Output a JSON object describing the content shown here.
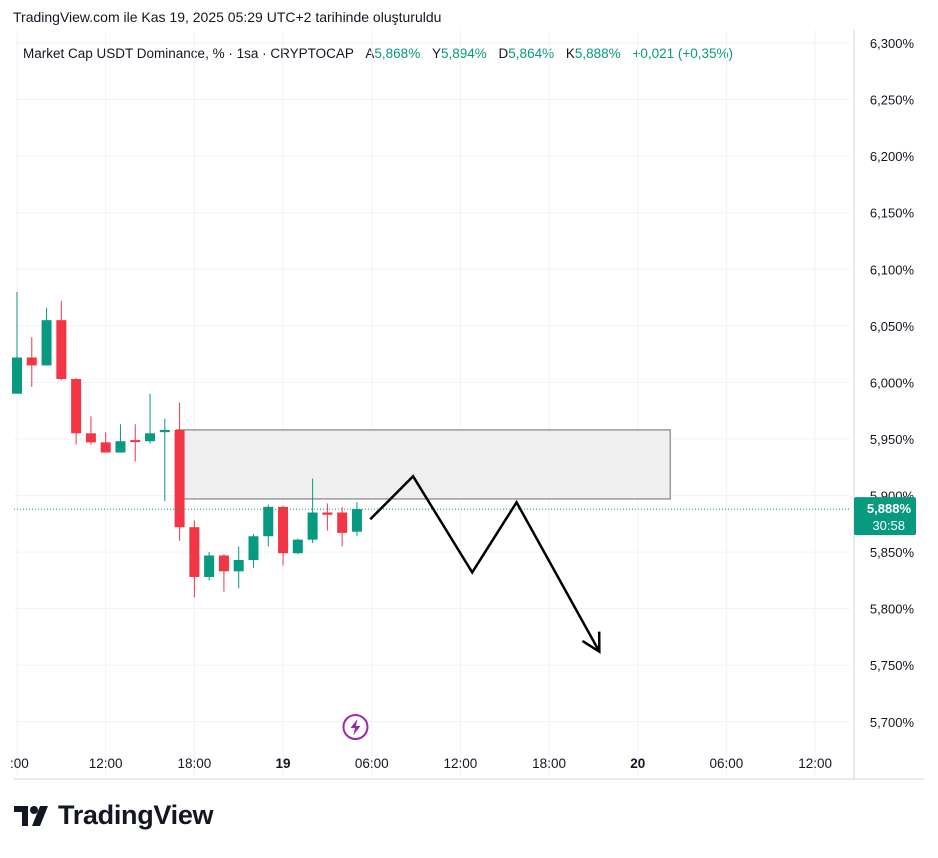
{
  "header": {
    "note": "TradingView.com ile Kas 19, 2025 05:29 UTC+2 tarihinde oluşturuldu"
  },
  "legend": {
    "symbol": "Market Cap USDT Dominance, % · 1sa · CRYPTOCAP",
    "open_label": "A",
    "open": "5,868%",
    "high_label": "Y",
    "high": "5,894%",
    "low_label": "D",
    "low": "5,864%",
    "close_label": "K",
    "close": "5,888%",
    "change": "+0,021 (+0,35%)"
  },
  "price_badge": {
    "price": "5,888%",
    "countdown": "30:58",
    "color": "#089981"
  },
  "logo": {
    "text": "TradingView"
  },
  "colors": {
    "up": "#089981",
    "down": "#f23645",
    "grid": "#f0f3fa",
    "zone_fill": "#f0f0f0",
    "zone_border": "#9b9b9b",
    "lightning": "#9c27b0"
  },
  "chart_data": {
    "type": "candlestick",
    "title": "Market Cap USDT Dominance, % · 1sa · CRYPTOCAP",
    "y_unit": "%",
    "ylim": [
      5.68,
      6.31
    ],
    "yticks": [
      {
        "value": 6.3,
        "label": "6,300%"
      },
      {
        "value": 6.25,
        "label": "6,250%"
      },
      {
        "value": 6.2,
        "label": "6,200%"
      },
      {
        "value": 6.15,
        "label": "6,150%"
      },
      {
        "value": 6.1,
        "label": "6,100%"
      },
      {
        "value": 6.05,
        "label": "6,050%"
      },
      {
        "value": 6.0,
        "label": "6,000%"
      },
      {
        "value": 5.95,
        "label": "5,950%"
      },
      {
        "value": 5.9,
        "label": "5,900%"
      },
      {
        "value": 5.85,
        "label": "5,850%"
      },
      {
        "value": 5.8,
        "label": "5,800%"
      },
      {
        "value": 5.75,
        "label": "5,750%"
      },
      {
        "value": 5.7,
        "label": "5,700%"
      }
    ],
    "xticks": [
      {
        "hour": 6,
        "label": ":00",
        "bold": false
      },
      {
        "hour": 12,
        "label": "12:00",
        "bold": false
      },
      {
        "hour": 18,
        "label": "18:00",
        "bold": false
      },
      {
        "hour": 24,
        "label": "19",
        "bold": true
      },
      {
        "hour": 30,
        "label": "06:00",
        "bold": false
      },
      {
        "hour": 36,
        "label": "12:00",
        "bold": false
      },
      {
        "hour": 42,
        "label": "18:00",
        "bold": false
      },
      {
        "hour": 48,
        "label": "20",
        "bold": true
      },
      {
        "hour": 54,
        "label": "06:00",
        "bold": false
      },
      {
        "hour": 60,
        "label": "12:00",
        "bold": false
      }
    ],
    "candles": [
      {
        "t": 6,
        "o": 5.99,
        "h": 6.08,
        "l": 5.99,
        "c": 6.022
      },
      {
        "t": 7,
        "o": 6.022,
        "h": 6.04,
        "l": 5.996,
        "c": 6.015
      },
      {
        "t": 8,
        "o": 6.015,
        "h": 6.066,
        "l": 6.015,
        "c": 6.055
      },
      {
        "t": 9,
        "o": 6.055,
        "h": 6.072,
        "l": 6.002,
        "c": 6.003
      },
      {
        "t": 10,
        "o": 6.003,
        "h": 6.004,
        "l": 5.945,
        "c": 5.955
      },
      {
        "t": 11,
        "o": 5.955,
        "h": 5.97,
        "l": 5.945,
        "c": 5.947
      },
      {
        "t": 12,
        "o": 5.947,
        "h": 5.956,
        "l": 5.938,
        "c": 5.938
      },
      {
        "t": 13,
        "o": 5.938,
        "h": 5.963,
        "l": 5.938,
        "c": 5.948
      },
      {
        "t": 14,
        "o": 5.949,
        "h": 5.963,
        "l": 5.93,
        "c": 5.948
      },
      {
        "t": 15,
        "o": 5.948,
        "h": 5.99,
        "l": 5.946,
        "c": 5.955
      },
      {
        "t": 16,
        "o": 5.956,
        "h": 5.968,
        "l": 5.895,
        "c": 5.958
      },
      {
        "t": 17,
        "o": 5.958,
        "h": 5.982,
        "l": 5.86,
        "c": 5.872
      },
      {
        "t": 18,
        "o": 5.872,
        "h": 5.878,
        "l": 5.81,
        "c": 5.828
      },
      {
        "t": 19,
        "o": 5.828,
        "h": 5.85,
        "l": 5.825,
        "c": 5.847
      },
      {
        "t": 20,
        "o": 5.847,
        "h": 5.848,
        "l": 5.815,
        "c": 5.833
      },
      {
        "t": 21,
        "o": 5.833,
        "h": 5.855,
        "l": 5.818,
        "c": 5.843
      },
      {
        "t": 22,
        "o": 5.843,
        "h": 5.866,
        "l": 5.836,
        "c": 5.864
      },
      {
        "t": 23,
        "o": 5.864,
        "h": 5.892,
        "l": 5.855,
        "c": 5.89
      },
      {
        "t": 24,
        "o": 5.89,
        "h": 5.891,
        "l": 5.838,
        "c": 5.849
      },
      {
        "t": 25,
        "o": 5.849,
        "h": 5.862,
        "l": 5.848,
        "c": 5.861
      },
      {
        "t": 26,
        "o": 5.861,
        "h": 5.915,
        "l": 5.858,
        "c": 5.885
      },
      {
        "t": 27,
        "o": 5.885,
        "h": 5.893,
        "l": 5.869,
        "c": 5.883
      },
      {
        "t": 28,
        "o": 5.885,
        "h": 5.89,
        "l": 5.855,
        "c": 5.867
      },
      {
        "t": 29,
        "o": 5.868,
        "h": 5.894,
        "l": 5.864,
        "c": 5.888
      }
    ],
    "last_price": 5.888,
    "annotations": {
      "zone": {
        "t_start": 16.8,
        "t_end": 50.2,
        "top": 5.958,
        "bottom": 5.897
      },
      "projection_path": [
        {
          "t": 29.9,
          "v": 5.879
        },
        {
          "t": 32.8,
          "v": 5.917
        },
        {
          "t": 36.8,
          "v": 5.832
        },
        {
          "t": 39.8,
          "v": 5.894
        },
        {
          "t": 45.4,
          "v": 5.762
        }
      ],
      "event_marker_hour": 28.9
    }
  }
}
